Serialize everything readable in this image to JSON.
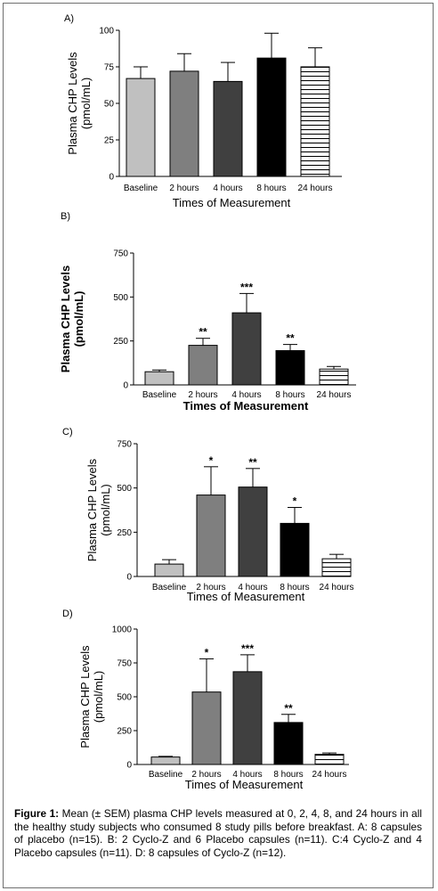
{
  "chart_data": [
    {
      "panel": "A)",
      "type": "bar",
      "categories": [
        "Baseline",
        "2 hours",
        "4 hours",
        "8 hours",
        "24 hours"
      ],
      "values": [
        67,
        72,
        65,
        81,
        75
      ],
      "errors": [
        8,
        12,
        13,
        17,
        13
      ],
      "significance": [
        "",
        "",
        "",
        "",
        ""
      ],
      "fills": [
        "#c0c0c0",
        "#7f7f7f",
        "#404040",
        "#000000",
        "stripes"
      ],
      "ylabel": "Plasma CHP Levels\n(pmol/mL)",
      "xlabel": "Times of Measurement",
      "ylim": [
        0,
        100
      ],
      "yticks": [
        0,
        25,
        50,
        75,
        100
      ],
      "grid": false
    },
    {
      "panel": "B)",
      "type": "bar",
      "categories": [
        "Baseline",
        "2 hours",
        "4 hours",
        "8 hours",
        "24 hours"
      ],
      "values": [
        75,
        225,
        410,
        195,
        90
      ],
      "errors": [
        10,
        40,
        110,
        35,
        15
      ],
      "significance": [
        "",
        "**",
        "***",
        "**",
        ""
      ],
      "fills": [
        "#c0c0c0",
        "#7f7f7f",
        "#404040",
        "#000000",
        "stripes"
      ],
      "ylabel": "Plasma CHP Levels\n(pmol/mL)",
      "xlabel": "Times of Measurement",
      "ylim": [
        0,
        750
      ],
      "yticks": [
        0,
        250,
        500,
        750
      ],
      "grid": false
    },
    {
      "panel": "C)",
      "type": "bar",
      "categories": [
        "Baseline",
        "2 hours",
        "4 hours",
        "8 hours",
        "24 hours"
      ],
      "values": [
        70,
        460,
        505,
        300,
        100
      ],
      "errors": [
        25,
        160,
        105,
        90,
        25
      ],
      "significance": [
        "",
        "*",
        "**",
        "*",
        ""
      ],
      "fills": [
        "#c0c0c0",
        "#7f7f7f",
        "#404040",
        "#000000",
        "stripes"
      ],
      "ylabel": "Plasma CHP Levels\n(pmol/mL)",
      "xlabel": "Times of Measurement",
      "ylim": [
        0,
        750
      ],
      "yticks": [
        0,
        250,
        500,
        750
      ],
      "grid": false
    },
    {
      "panel": "D)",
      "type": "bar",
      "categories": [
        "Baseline",
        "2 hours",
        "4 hours",
        "8 hours",
        "24 hours"
      ],
      "values": [
        55,
        535,
        685,
        310,
        75
      ],
      "errors": [
        5,
        245,
        125,
        60,
        10
      ],
      "significance": [
        "",
        "*",
        "***",
        "**",
        ""
      ],
      "fills": [
        "#c0c0c0",
        "#7f7f7f",
        "#404040",
        "#000000",
        "stripes"
      ],
      "ylabel": "Plasma CHP Levels\n(pmol/mL)",
      "xlabel": "Times of Measurement",
      "ylim": [
        0,
        1000
      ],
      "yticks": [
        0,
        250,
        500,
        750,
        1000
      ],
      "grid": false
    }
  ],
  "caption": {
    "label": "Figure 1:",
    "text": " Mean (± SEM) plasma CHP levels measured at 0, 2, 4, 8, and 24 hours in all the healthy study subjects who consumed 8 study pills before breakfast.  A: 8 capsules of placebo (n=15). B: 2 Cyclo-Z and 6 Placebo capsules (n=11).  C:4 Cyclo-Z and 4 Placebo capsules (n=11).  D: 8 capsules of Cyclo-Z (n=12)."
  }
}
